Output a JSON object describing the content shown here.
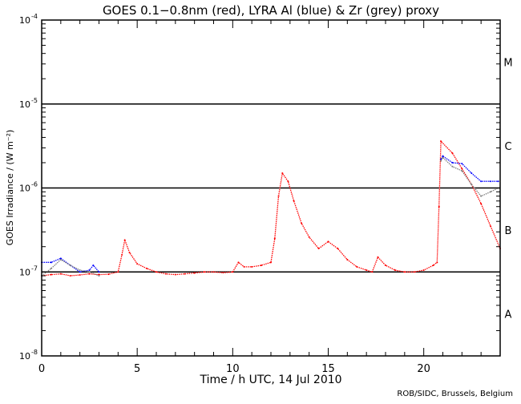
{
  "chart_data": {
    "type": "scatter",
    "title": "GOES 0.1−0.8nm (red), LYRA Al (blue) & Zr (grey) proxy",
    "xlabel": "Time / h UTC, 14 Jul 2010",
    "ylabel": "GOES Irradiance / (W m⁻²)",
    "xlim": [
      0,
      24
    ],
    "ylim": [
      1e-08,
      0.0001
    ],
    "yscale": "log",
    "x_ticks": [
      "0",
      "5",
      "10",
      "15",
      "20"
    ],
    "x_tick_values": [
      0,
      5,
      10,
      15,
      20
    ],
    "y_ticks": [
      {
        "base": "10",
        "exp": "-8",
        "value": 1e-08
      },
      {
        "base": "10",
        "exp": "-7",
        "value": 1e-07
      },
      {
        "base": "10",
        "exp": "-6",
        "value": 1e-06
      },
      {
        "base": "10",
        "exp": "-5",
        "value": 1e-05
      },
      {
        "base": "10",
        "exp": "-4",
        "value": 0.0001
      }
    ],
    "reference_lines": [
      1e-07,
      1e-06,
      1e-05
    ],
    "flare_classes": [
      {
        "label": "A",
        "value": 3.16e-08
      },
      {
        "label": "B",
        "value": 3.16e-07
      },
      {
        "label": "C",
        "value": 3.16e-06
      },
      {
        "label": "M",
        "value": 3.16e-05
      }
    ],
    "series": [
      {
        "name": "GOES 0.1-0.8nm",
        "color": "#ff0000",
        "points": [
          [
            0,
            9e-08
          ],
          [
            0.5,
            9.3e-08
          ],
          [
            1,
            9.5e-08
          ],
          [
            1.5,
            9e-08
          ],
          [
            2,
            9.2e-08
          ],
          [
            2.5,
            9.5e-08
          ],
          [
            3,
            9.3e-08
          ],
          [
            3.5,
            9.4e-08
          ],
          [
            4,
            1e-07
          ],
          [
            4.2,
            1.6e-07
          ],
          [
            4.35,
            2.4e-07
          ],
          [
            4.6,
            1.7e-07
          ],
          [
            5,
            1.25e-07
          ],
          [
            5.5,
            1.1e-07
          ],
          [
            6,
            1e-07
          ],
          [
            6.5,
            9.5e-08
          ],
          [
            7,
            9.3e-08
          ],
          [
            7.5,
            9.5e-08
          ],
          [
            8,
            9.7e-08
          ],
          [
            8.5,
            1e-07
          ],
          [
            9,
            1e-07
          ],
          [
            9.5,
            9.8e-08
          ],
          [
            10,
            1e-07
          ],
          [
            10.3,
            1.3e-07
          ],
          [
            10.6,
            1.15e-07
          ],
          [
            11,
            1.15e-07
          ],
          [
            11.5,
            1.2e-07
          ],
          [
            12,
            1.3e-07
          ],
          [
            12.2,
            2.5e-07
          ],
          [
            12.4,
            8e-07
          ],
          [
            12.6,
            1.5e-06
          ],
          [
            12.9,
            1.2e-06
          ],
          [
            13.2,
            7e-07
          ],
          [
            13.6,
            3.8e-07
          ],
          [
            14,
            2.6e-07
          ],
          [
            14.5,
            1.9e-07
          ],
          [
            15,
            2.3e-07
          ],
          [
            15.5,
            1.9e-07
          ],
          [
            16,
            1.4e-07
          ],
          [
            16.5,
            1.15e-07
          ],
          [
            17,
            1.05e-07
          ],
          [
            17.3,
            1e-07
          ],
          [
            17.6,
            1.5e-07
          ],
          [
            18,
            1.2e-07
          ],
          [
            18.5,
            1.05e-07
          ],
          [
            19,
            1e-07
          ],
          [
            19.5,
            1e-07
          ],
          [
            20,
            1.05e-07
          ],
          [
            20.5,
            1.2e-07
          ],
          [
            20.7,
            1.3e-07
          ],
          [
            20.8,
            6e-07
          ],
          [
            20.9,
            3.6e-06
          ],
          [
            21.5,
            2.6e-06
          ],
          [
            22,
            1.7e-06
          ],
          [
            22.5,
            1.1e-06
          ],
          [
            23,
            6.5e-07
          ],
          [
            23.5,
            3.5e-07
          ],
          [
            24,
            1.9e-07
          ]
        ]
      },
      {
        "name": "LYRA Al proxy",
        "color": "#0000ff",
        "points": [
          [
            0,
            1.3e-07
          ],
          [
            0.5,
            1.3e-07
          ],
          [
            1,
            1.45e-07
          ],
          [
            1.5,
            1.2e-07
          ],
          [
            2,
            1e-07
          ],
          [
            2.5,
            1.05e-07
          ],
          [
            2.7,
            1.2e-07
          ],
          [
            3,
            1e-07
          ]
        ]
      },
      {
        "name": "LYRA Al proxy (late)",
        "color": "#0000ff",
        "points": [
          [
            20.9,
            2.2e-06
          ],
          [
            21,
            2.4e-06
          ],
          [
            21.5,
            2e-06
          ],
          [
            22,
            1.95e-06
          ],
          [
            22.5,
            1.5e-06
          ],
          [
            23,
            1.2e-06
          ],
          [
            23.5,
            1.2e-06
          ],
          [
            23.9,
            1.2e-06
          ]
        ]
      },
      {
        "name": "LYRA Zr proxy",
        "color": "#808080",
        "points": [
          [
            0,
            9e-08
          ],
          [
            0.5,
            1.1e-07
          ],
          [
            1,
            1.4e-07
          ],
          [
            1.5,
            1.2e-07
          ],
          [
            2,
            1.05e-07
          ],
          [
            2.5,
            1e-07
          ],
          [
            3,
            9e-08
          ]
        ]
      },
      {
        "name": "LYRA Zr proxy (late)",
        "color": "#808080",
        "points": [
          [
            20.9,
            2.1e-06
          ],
          [
            21,
            2.3e-06
          ],
          [
            21.5,
            1.8e-06
          ],
          [
            22,
            1.6e-06
          ],
          [
            22.5,
            1.1e-06
          ],
          [
            23,
            8e-07
          ],
          [
            23.5,
            9e-07
          ],
          [
            23.9,
            1e-06
          ]
        ]
      }
    ]
  },
  "footer": "ROB/SIDC, Brussels, Belgium"
}
